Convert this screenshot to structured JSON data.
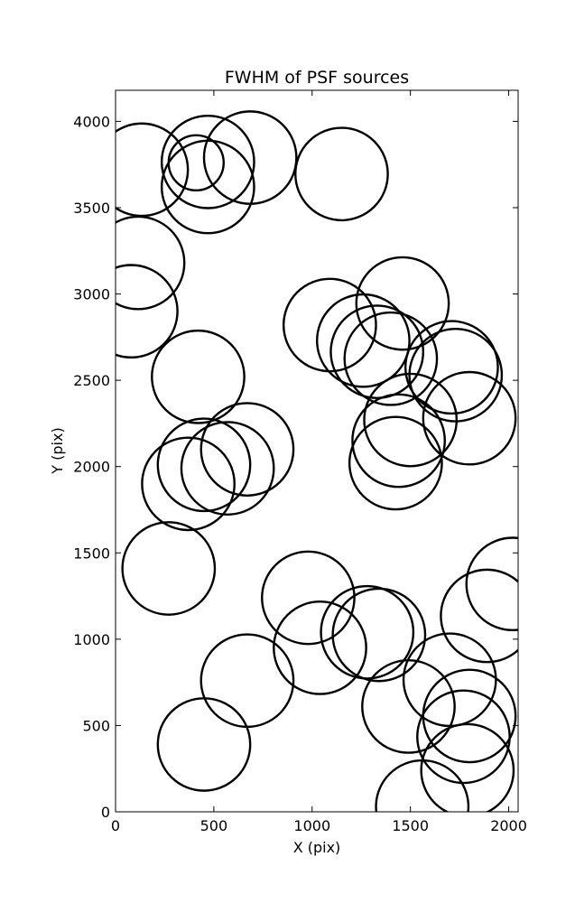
{
  "chart_data": {
    "type": "scatter",
    "title": "FWHM of PSF sources",
    "xlabel": "X (pix)",
    "ylabel": "Y (pix)",
    "xlim": [
      0,
      2048
    ],
    "ylim": [
      0,
      4180
    ],
    "xticks": [
      0,
      500,
      1000,
      1500,
      2000
    ],
    "yticks": [
      0,
      500,
      1000,
      1500,
      2000,
      2500,
      3000,
      3500,
      4000
    ],
    "xtick_labels": [
      "0",
      "500",
      "1000",
      "1500",
      "2000"
    ],
    "ytick_labels": [
      "0",
      "500",
      "1000",
      "1500",
      "2000",
      "2500",
      "3000",
      "3500",
      "4000"
    ],
    "grid": false,
    "marker": "circle, unfilled",
    "default_color": "#000000",
    "highlight_color": "#ff00ff",
    "radius_units": "pix",
    "sources": [
      {
        "x": 133,
        "y": 3720,
        "r": 235
      },
      {
        "x": 470,
        "y": 3765,
        "r": 235
      },
      {
        "x": 685,
        "y": 3790,
        "r": 235
      },
      {
        "x": 470,
        "y": 3620,
        "r": 235
      },
      {
        "x": 1150,
        "y": 3695,
        "r": 235
      },
      {
        "x": 410,
        "y": 3760,
        "r": 140,
        "highlight": true
      },
      {
        "x": 115,
        "y": 3180,
        "r": 235
      },
      {
        "x": 80,
        "y": 2900,
        "r": 235
      },
      {
        "x": 1460,
        "y": 2945,
        "r": 235
      },
      {
        "x": 1090,
        "y": 2820,
        "r": 235
      },
      {
        "x": 1260,
        "y": 2730,
        "r": 235
      },
      {
        "x": 1330,
        "y": 2665,
        "r": 235
      },
      {
        "x": 1400,
        "y": 2625,
        "r": 235
      },
      {
        "x": 420,
        "y": 2520,
        "r": 235
      },
      {
        "x": 1710,
        "y": 2575,
        "r": 235
      },
      {
        "x": 1730,
        "y": 2530,
        "r": 235
      },
      {
        "x": 1800,
        "y": 2280,
        "r": 235
      },
      {
        "x": 1500,
        "y": 2270,
        "r": 235
      },
      {
        "x": 1440,
        "y": 2150,
        "r": 235
      },
      {
        "x": 1425,
        "y": 2020,
        "r": 235
      },
      {
        "x": 670,
        "y": 2100,
        "r": 235
      },
      {
        "x": 450,
        "y": 2010,
        "r": 235
      },
      {
        "x": 570,
        "y": 1990,
        "r": 235
      },
      {
        "x": 370,
        "y": 1900,
        "r": 235
      },
      {
        "x": 270,
        "y": 1410,
        "r": 235
      },
      {
        "x": 2020,
        "y": 1320,
        "r": 235
      },
      {
        "x": 1890,
        "y": 1135,
        "r": 235
      },
      {
        "x": 980,
        "y": 1240,
        "r": 235
      },
      {
        "x": 1280,
        "y": 1040,
        "r": 235
      },
      {
        "x": 1340,
        "y": 1025,
        "r": 235
      },
      {
        "x": 1040,
        "y": 950,
        "r": 235
      },
      {
        "x": 670,
        "y": 760,
        "r": 235
      },
      {
        "x": 1700,
        "y": 765,
        "r": 235
      },
      {
        "x": 1490,
        "y": 610,
        "r": 235
      },
      {
        "x": 1800,
        "y": 555,
        "r": 235
      },
      {
        "x": 1770,
        "y": 435,
        "r": 235
      },
      {
        "x": 450,
        "y": 390,
        "r": 235
      },
      {
        "x": 1790,
        "y": 240,
        "r": 235
      },
      {
        "x": 1560,
        "y": 30,
        "r": 235
      }
    ]
  }
}
